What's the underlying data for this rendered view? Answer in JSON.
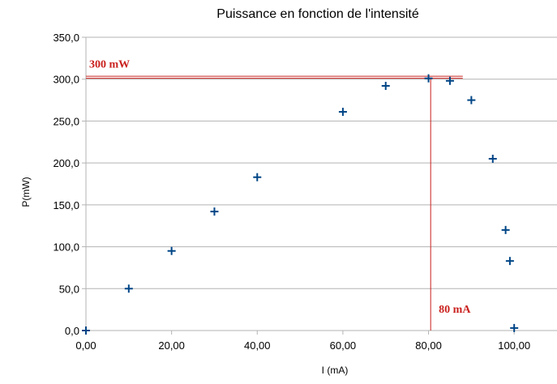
{
  "chart_data": {
    "type": "scatter",
    "title": "Puissance en fonction de l'intensité",
    "xlabel": "I (mA)",
    "ylabel": "P(mW)",
    "xlim": [
      0,
      110
    ],
    "ylim": [
      0,
      350
    ],
    "x_ticks": [
      0,
      20,
      40,
      60,
      80,
      100
    ],
    "x_tick_labels": [
      "0,00",
      "20,00",
      "40,00",
      "60,00",
      "80,00",
      "100,00"
    ],
    "y_ticks": [
      0,
      50,
      100,
      150,
      200,
      250,
      300,
      350
    ],
    "y_tick_labels": [
      "0,0",
      "50,0",
      "100,0",
      "150,0",
      "200,0",
      "250,0",
      "300,0",
      "350,0"
    ],
    "grid": "horizontal",
    "marker": "plus",
    "series": [
      {
        "color": "#004586",
        "points": [
          {
            "x": 0,
            "y": 0
          },
          {
            "x": 10,
            "y": 50
          },
          {
            "x": 20,
            "y": 95
          },
          {
            "x": 30,
            "y": 142
          },
          {
            "x": 40,
            "y": 183
          },
          {
            "x": 60,
            "y": 261
          },
          {
            "x": 70,
            "y": 292
          },
          {
            "x": 80,
            "y": 301
          },
          {
            "x": 85,
            "y": 298
          },
          {
            "x": 90,
            "y": 275
          },
          {
            "x": 95,
            "y": 205
          },
          {
            "x": 98,
            "y": 120
          },
          {
            "x": 99,
            "y": 83
          },
          {
            "x": 100,
            "y": 3
          }
        ]
      }
    ],
    "annotations": {
      "color": "#c9211e",
      "horizontal_line": {
        "y": 302,
        "x_from": 0,
        "x_to": 88,
        "label": "300 mW"
      },
      "vertical_line": {
        "x": 80.5,
        "y_from": 0,
        "y_to": 302,
        "label": "80 mA"
      }
    }
  }
}
